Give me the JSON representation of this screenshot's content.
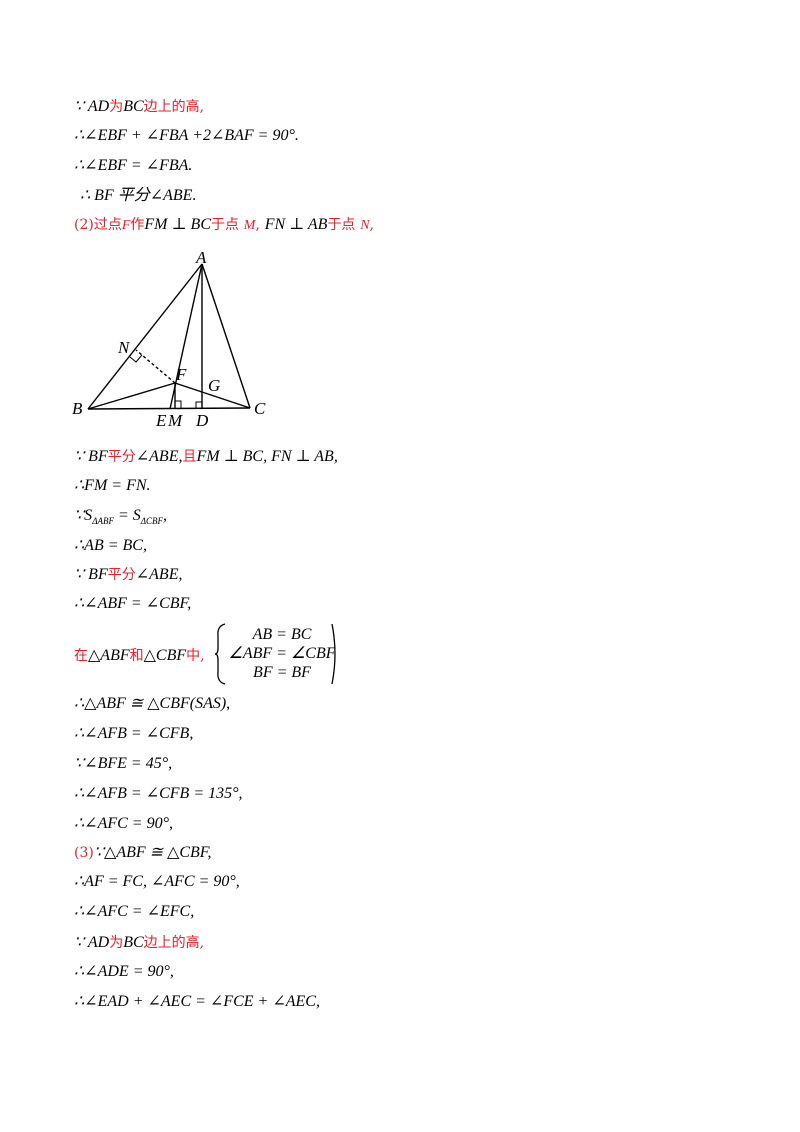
{
  "lines": {
    "l1_math1": "∵ AD",
    "l1_red1": "为",
    "l1_math2": "BC",
    "l1_red2": "边上的高,",
    "l2": "∴∠EBF + ∠FBA +2∠BAF = 90°.",
    "l3": "∴∠EBF = ∠FBA.",
    "l4": "∴ BF 平分∠ABE.",
    "l5_red1": "(2)过点",
    "l5_math1": "F",
    "l5_red2": "作",
    "l5_math2": "FM ⊥ BC",
    "l5_red3": "于点",
    "l5_math3": "M",
    "l5_red4": ",",
    "l5_math4": "FN ⊥ AB",
    "l5_red5": "于点",
    "l5_math5": "N",
    "l5_red6": ",",
    "l6_math1": "∵ BF",
    "l6_red1": "平分",
    "l6_math2": "∠ABE,",
    "l6_red2": "且",
    "l6_math3": "FM ⊥ BC, FN ⊥ AB,",
    "l7": "∴FM = FN.",
    "l8_main": "∵S",
    "l8_sub1": "ΔABF",
    "l8_eq": " = S",
    "l8_sub2": "ΔCBF",
    "l8_end": ",",
    "l9": "∴AB = BC,",
    "l10_math1": "∵ BF",
    "l10_red": "平分",
    "l10_math2": "∠ABE,",
    "l11": "∴∠ABF = ∠CBF,",
    "l12_red1": "在",
    "l12_math1": "△ABF",
    "l12_red2": "和",
    "l12_math2": "△CBF",
    "l12_red3": "中,",
    "sys_r1": "AB = BC",
    "sys_r2": "∠ABF = ∠CBF",
    "sys_r3": "BF = BF",
    "l13": "∴△ABF ≅ △CBF(SAS),",
    "l14": "∴∠AFB = ∠CFB,",
    "l15": "∵∠BFE = 45°,",
    "l16": "∴∠AFB = ∠CFB = 135°,",
    "l17": "∴∠AFC = 90°,",
    "l18_red": "(3)",
    "l18_math": "∵△ABF ≅ △CBF,",
    "l19": "∴AF = FC, ∠AFC = 90°,",
    "l20": "∴∠AFC = ∠EFC,",
    "l21_math1": "∵ AD",
    "l21_red1": "为",
    "l21_math2": "BC",
    "l21_red2": "边上的高,",
    "l22": "∴∠ADE = 90°,",
    "l23": "∴∠EAD + ∠AEC = ∠FCE + ∠AEC,"
  },
  "figure": {
    "labels": {
      "A": "A",
      "B": "B",
      "C": "C",
      "N": "N",
      "F": "F",
      "G": "G",
      "E": "E",
      "M": "M",
      "D": "D"
    }
  }
}
